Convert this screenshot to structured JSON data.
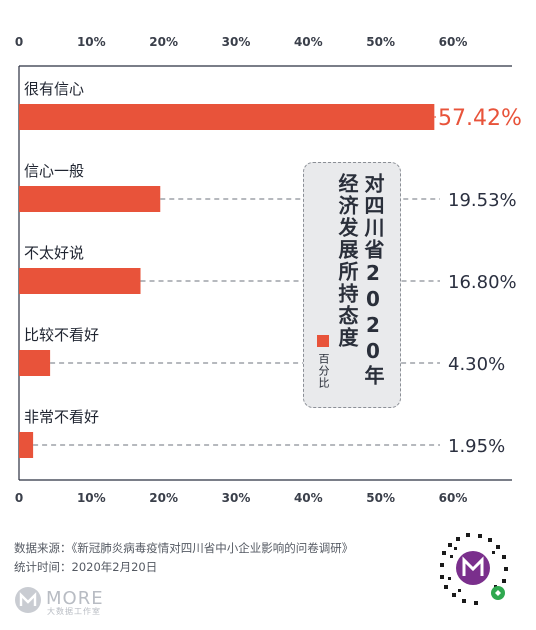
{
  "chart_data": {
    "type": "bar",
    "orientation": "horizontal",
    "title": "对四川省2020年经济发展所持态度",
    "categories": [
      "很有信心",
      "信心一般",
      "不太好说",
      "比较不看好",
      "非常不看好"
    ],
    "series": [
      {
        "name": "百分比",
        "values": [
          57.42,
          19.53,
          16.8,
          4.3,
          1.95
        ]
      }
    ],
    "value_labels": [
      "57.42%",
      "19.53%",
      "16.80%",
      "4.30%",
      "1.95%"
    ],
    "xlim": [
      0,
      60
    ],
    "x_ticks": [
      0,
      10,
      20,
      30,
      40,
      50,
      60
    ],
    "x_tick_labels": [
      "0",
      "10%",
      "20%",
      "30%",
      "40%",
      "50%",
      "60%"
    ],
    "xlabel": "",
    "ylabel": "",
    "grid": false,
    "legend_position": "inside-right",
    "bar_color": "#e8533a",
    "highlight_color": "#e8533a"
  },
  "title_lines": [
    "对四川省2020年",
    "经济发展所持态度"
  ],
  "legend_label": "百分比",
  "footer": {
    "source": "数据来源：《新冠肺炎病毒疫情对四川省中小企业影响的问卷调研》",
    "stat_time": "统计时间：2020年2月20日"
  },
  "logo": {
    "text": "MORE",
    "sub": "大数据工作室"
  },
  "qr_icon": "mini-program-qr-icon"
}
